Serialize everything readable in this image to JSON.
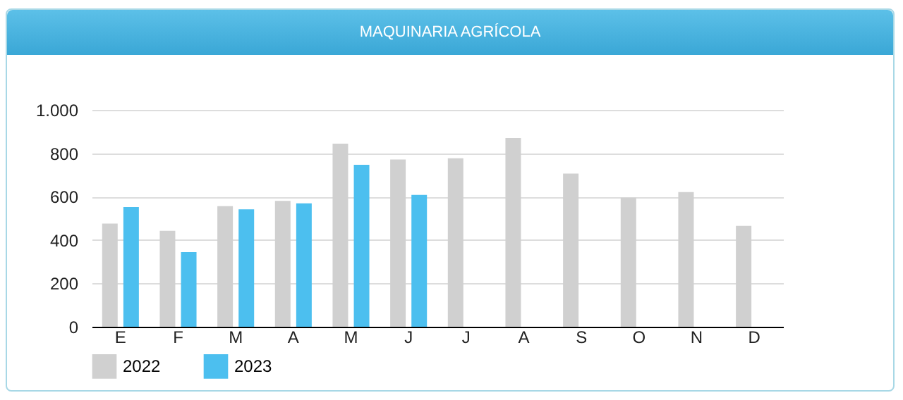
{
  "chart_data": {
    "type": "bar",
    "title": "MAQUINARIA AGRÍCOLA",
    "categories": [
      "E",
      "F",
      "M",
      "A",
      "M",
      "J",
      "J",
      "A",
      "S",
      "O",
      "N",
      "D"
    ],
    "series": [
      {
        "name": "2022",
        "color": "#d0d0d0",
        "values": [
          476,
          442,
          556,
          580,
          844,
          771,
          777,
          870,
          706,
          595,
          621,
          465
        ]
      },
      {
        "name": "2023",
        "color": "#4cbfef",
        "values": [
          552,
          344,
          541,
          569,
          747,
          608,
          null,
          null,
          null,
          null,
          null,
          null
        ]
      }
    ],
    "ylim": [
      0,
      1000
    ],
    "yticks": [
      0,
      200,
      400,
      600,
      800,
      {
        "value": 1000,
        "label": "1.000"
      }
    ],
    "grid": "y",
    "legend": "bottom"
  }
}
